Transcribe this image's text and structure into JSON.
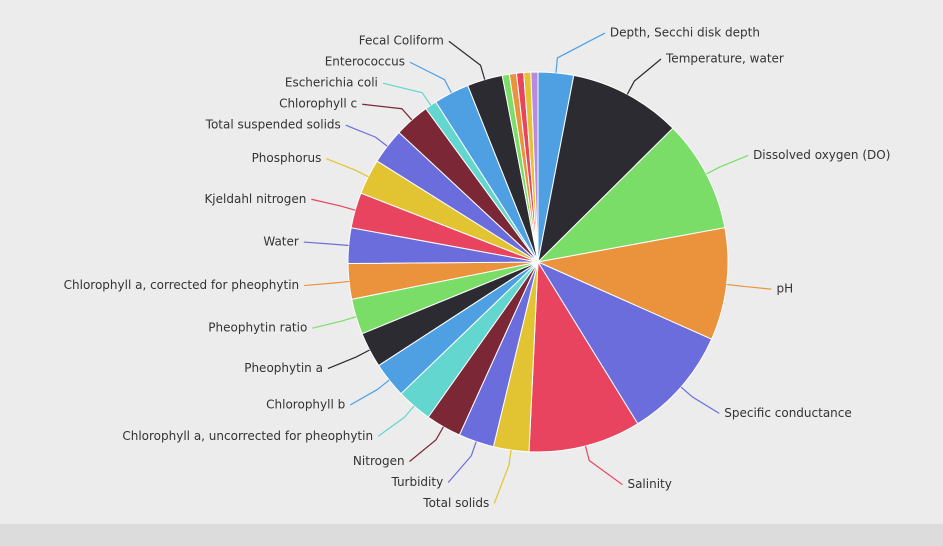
{
  "chart_data": {
    "type": "pie",
    "categories": [
      "Depth, Secchi disk depth",
      "Temperature, water",
      "Dissolved oxygen (DO)",
      "pH",
      "Specific conductance",
      "Salinity",
      "Total solids",
      "Turbidity",
      "Nitrogen",
      "Chlorophyll a, uncorrected for pheophytin",
      "Chlorophyll b",
      "Pheophytin a",
      "Pheophytin ratio",
      "Chlorophyll a, corrected for pheophytin",
      "Water",
      "Kjeldahl nitrogen",
      "Phosphorus",
      "Total suspended solids",
      "Chlorophyll c",
      "Escherichia coli",
      "Enterococcus",
      "Fecal Coliform",
      null,
      null,
      null,
      null,
      null
    ],
    "values": [
      3,
      9.5,
      9.5,
      9.5,
      9.5,
      9.5,
      3,
      3,
      3,
      3,
      3,
      3,
      3,
      3,
      3,
      3,
      3,
      3,
      3,
      1,
      3,
      3,
      0.6,
      0.6,
      0.6,
      0.6,
      0.6
    ],
    "colors": [
      "#4f9fe3",
      "#2b2b31",
      "#79dd68",
      "#ea923c",
      "#6b6ddd",
      "#e8445f",
      "#e2c433",
      "#6b6ddd",
      "#7b2736",
      "#62d6cf",
      "#4f9fe3",
      "#2b2b31",
      "#79dd68",
      "#ea923c",
      "#6b6ddd",
      "#e8445f",
      "#e2c433",
      "#6b6ddd",
      "#7b2736",
      "#62d6cf",
      "#4f9fe3",
      "#2b2b31",
      "#79dd68",
      "#ea923c",
      "#e8445f",
      "#e2c433",
      "#b98ae0"
    ]
  }
}
